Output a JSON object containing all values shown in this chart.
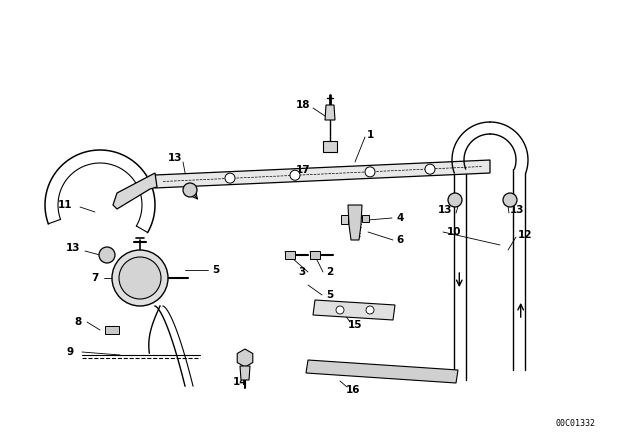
{
  "background_color": "#ffffff",
  "part_number_code": "00C01332",
  "fig_width": 6.4,
  "fig_height": 4.48,
  "dpi": 100,
  "label_fs": 7.5,
  "note_fs": 6.0
}
